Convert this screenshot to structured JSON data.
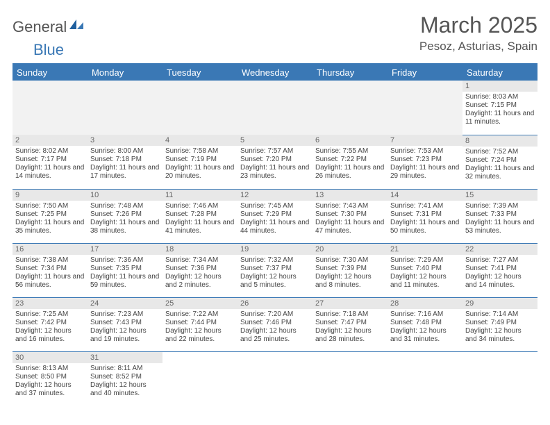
{
  "brand": {
    "part1": "General",
    "part2": "Blue"
  },
  "title": "March 2025",
  "location": "Pesoz, Asturias, Spain",
  "style": {
    "accent": "#3a78b5",
    "header_bg": "#3a78b5",
    "header_text": "#ffffff",
    "daynum_bg": "#e8e8e8",
    "blank_bg": "#f2f2f2",
    "text_color": "#444444",
    "title_color": "#555555"
  },
  "weekdays": [
    "Sunday",
    "Monday",
    "Tuesday",
    "Wednesday",
    "Thursday",
    "Friday",
    "Saturday"
  ],
  "weeks": [
    [
      null,
      null,
      null,
      null,
      null,
      null,
      {
        "n": "1",
        "sr": "Sunrise: 8:03 AM",
        "ss": "Sunset: 7:15 PM",
        "dl": "Daylight: 11 hours and 11 minutes."
      }
    ],
    [
      {
        "n": "2",
        "sr": "Sunrise: 8:02 AM",
        "ss": "Sunset: 7:17 PM",
        "dl": "Daylight: 11 hours and 14 minutes."
      },
      {
        "n": "3",
        "sr": "Sunrise: 8:00 AM",
        "ss": "Sunset: 7:18 PM",
        "dl": "Daylight: 11 hours and 17 minutes."
      },
      {
        "n": "4",
        "sr": "Sunrise: 7:58 AM",
        "ss": "Sunset: 7:19 PM",
        "dl": "Daylight: 11 hours and 20 minutes."
      },
      {
        "n": "5",
        "sr": "Sunrise: 7:57 AM",
        "ss": "Sunset: 7:20 PM",
        "dl": "Daylight: 11 hours and 23 minutes."
      },
      {
        "n": "6",
        "sr": "Sunrise: 7:55 AM",
        "ss": "Sunset: 7:22 PM",
        "dl": "Daylight: 11 hours and 26 minutes."
      },
      {
        "n": "7",
        "sr": "Sunrise: 7:53 AM",
        "ss": "Sunset: 7:23 PM",
        "dl": "Daylight: 11 hours and 29 minutes."
      },
      {
        "n": "8",
        "sr": "Sunrise: 7:52 AM",
        "ss": "Sunset: 7:24 PM",
        "dl": "Daylight: 11 hours and 32 minutes."
      }
    ],
    [
      {
        "n": "9",
        "sr": "Sunrise: 7:50 AM",
        "ss": "Sunset: 7:25 PM",
        "dl": "Daylight: 11 hours and 35 minutes."
      },
      {
        "n": "10",
        "sr": "Sunrise: 7:48 AM",
        "ss": "Sunset: 7:26 PM",
        "dl": "Daylight: 11 hours and 38 minutes."
      },
      {
        "n": "11",
        "sr": "Sunrise: 7:46 AM",
        "ss": "Sunset: 7:28 PM",
        "dl": "Daylight: 11 hours and 41 minutes."
      },
      {
        "n": "12",
        "sr": "Sunrise: 7:45 AM",
        "ss": "Sunset: 7:29 PM",
        "dl": "Daylight: 11 hours and 44 minutes."
      },
      {
        "n": "13",
        "sr": "Sunrise: 7:43 AM",
        "ss": "Sunset: 7:30 PM",
        "dl": "Daylight: 11 hours and 47 minutes."
      },
      {
        "n": "14",
        "sr": "Sunrise: 7:41 AM",
        "ss": "Sunset: 7:31 PM",
        "dl": "Daylight: 11 hours and 50 minutes."
      },
      {
        "n": "15",
        "sr": "Sunrise: 7:39 AM",
        "ss": "Sunset: 7:33 PM",
        "dl": "Daylight: 11 hours and 53 minutes."
      }
    ],
    [
      {
        "n": "16",
        "sr": "Sunrise: 7:38 AM",
        "ss": "Sunset: 7:34 PM",
        "dl": "Daylight: 11 hours and 56 minutes."
      },
      {
        "n": "17",
        "sr": "Sunrise: 7:36 AM",
        "ss": "Sunset: 7:35 PM",
        "dl": "Daylight: 11 hours and 59 minutes."
      },
      {
        "n": "18",
        "sr": "Sunrise: 7:34 AM",
        "ss": "Sunset: 7:36 PM",
        "dl": "Daylight: 12 hours and 2 minutes."
      },
      {
        "n": "19",
        "sr": "Sunrise: 7:32 AM",
        "ss": "Sunset: 7:37 PM",
        "dl": "Daylight: 12 hours and 5 minutes."
      },
      {
        "n": "20",
        "sr": "Sunrise: 7:30 AM",
        "ss": "Sunset: 7:39 PM",
        "dl": "Daylight: 12 hours and 8 minutes."
      },
      {
        "n": "21",
        "sr": "Sunrise: 7:29 AM",
        "ss": "Sunset: 7:40 PM",
        "dl": "Daylight: 12 hours and 11 minutes."
      },
      {
        "n": "22",
        "sr": "Sunrise: 7:27 AM",
        "ss": "Sunset: 7:41 PM",
        "dl": "Daylight: 12 hours and 14 minutes."
      }
    ],
    [
      {
        "n": "23",
        "sr": "Sunrise: 7:25 AM",
        "ss": "Sunset: 7:42 PM",
        "dl": "Daylight: 12 hours and 16 minutes."
      },
      {
        "n": "24",
        "sr": "Sunrise: 7:23 AM",
        "ss": "Sunset: 7:43 PM",
        "dl": "Daylight: 12 hours and 19 minutes."
      },
      {
        "n": "25",
        "sr": "Sunrise: 7:22 AM",
        "ss": "Sunset: 7:44 PM",
        "dl": "Daylight: 12 hours and 22 minutes."
      },
      {
        "n": "26",
        "sr": "Sunrise: 7:20 AM",
        "ss": "Sunset: 7:46 PM",
        "dl": "Daylight: 12 hours and 25 minutes."
      },
      {
        "n": "27",
        "sr": "Sunrise: 7:18 AM",
        "ss": "Sunset: 7:47 PM",
        "dl": "Daylight: 12 hours and 28 minutes."
      },
      {
        "n": "28",
        "sr": "Sunrise: 7:16 AM",
        "ss": "Sunset: 7:48 PM",
        "dl": "Daylight: 12 hours and 31 minutes."
      },
      {
        "n": "29",
        "sr": "Sunrise: 7:14 AM",
        "ss": "Sunset: 7:49 PM",
        "dl": "Daylight: 12 hours and 34 minutes."
      }
    ],
    [
      {
        "n": "30",
        "sr": "Sunrise: 8:13 AM",
        "ss": "Sunset: 8:50 PM",
        "dl": "Daylight: 12 hours and 37 minutes."
      },
      {
        "n": "31",
        "sr": "Sunrise: 8:11 AM",
        "ss": "Sunset: 8:52 PM",
        "dl": "Daylight: 12 hours and 40 minutes."
      },
      null,
      null,
      null,
      null,
      null
    ]
  ]
}
